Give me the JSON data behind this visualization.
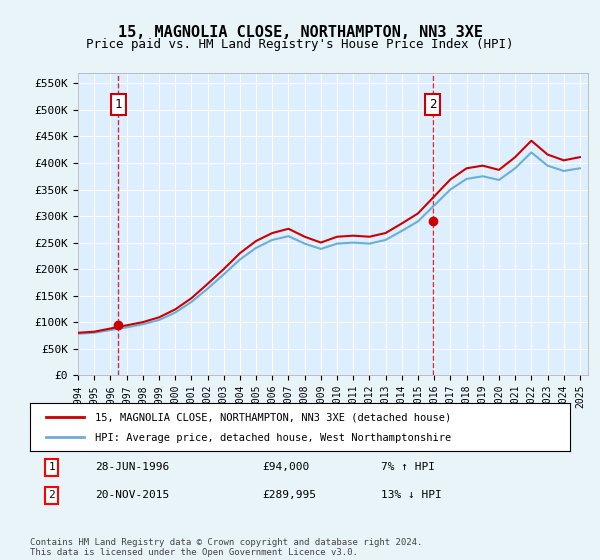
{
  "title": "15, MAGNOLIA CLOSE, NORTHAMPTON, NN3 3XE",
  "subtitle": "Price paid vs. HM Land Registry's House Price Index (HPI)",
  "ylabel_ticks": [
    "£0",
    "£50K",
    "£100K",
    "£150K",
    "£200K",
    "£250K",
    "£300K",
    "£350K",
    "£400K",
    "£450K",
    "£500K",
    "£550K"
  ],
  "ytick_values": [
    0,
    50000,
    100000,
    150000,
    200000,
    250000,
    300000,
    350000,
    400000,
    450000,
    500000,
    550000
  ],
  "ylim": [
    0,
    570000
  ],
  "xlim_start": 1994.0,
  "xlim_end": 2025.5,
  "background_color": "#e8f4f8",
  "plot_bg_color": "#ddeeff",
  "grid_color": "#ffffff",
  "sale1_date": 1996.49,
  "sale1_price": 94000,
  "sale1_label": "1",
  "sale2_date": 2015.9,
  "sale2_price": 289995,
  "sale2_label": "2",
  "legend_line1": "15, MAGNOLIA CLOSE, NORTHAMPTON, NN3 3XE (detached house)",
  "legend_line2": "HPI: Average price, detached house, West Northamptonshire",
  "annotation1": "28-JUN-1996        £94,000        7% ↑ HPI",
  "annotation2": "20-NOV-2015        £289,995        13% ↓ HPI",
  "footer": "Contains HM Land Registry data © Crown copyright and database right 2024.\nThis data is licensed under the Open Government Licence v3.0.",
  "hpi_color": "#6baed6",
  "price_color": "#cc0000",
  "dashed_line_color": "#cc0000",
  "sale_marker_color": "#cc0000",
  "xtick_years": [
    1994,
    1995,
    1996,
    1997,
    1998,
    1999,
    2000,
    2001,
    2002,
    2003,
    2004,
    2005,
    2006,
    2007,
    2008,
    2009,
    2010,
    2011,
    2012,
    2013,
    2014,
    2015,
    2016,
    2017,
    2018,
    2019,
    2020,
    2021,
    2022,
    2023,
    2024,
    2025
  ],
  "hpi_years": [
    1994,
    1995,
    1996,
    1997,
    1998,
    1999,
    2000,
    2001,
    2002,
    2003,
    2004,
    2005,
    2006,
    2007,
    2008,
    2009,
    2010,
    2011,
    2012,
    2013,
    2014,
    2015,
    2016,
    2017,
    2018,
    2019,
    2020,
    2021,
    2022,
    2023,
    2024,
    2025
  ],
  "hpi_values": [
    78000,
    80000,
    85000,
    90000,
    96000,
    104000,
    118000,
    138000,
    163000,
    190000,
    218000,
    240000,
    255000,
    262000,
    248000,
    238000,
    248000,
    250000,
    248000,
    255000,
    272000,
    290000,
    320000,
    350000,
    370000,
    375000,
    368000,
    390000,
    420000,
    395000,
    385000,
    390000
  ],
  "price_years": [
    1994,
    1995,
    1996,
    1997,
    1998,
    1999,
    2000,
    2001,
    2002,
    2003,
    2004,
    2005,
    2006,
    2007,
    2008,
    2009,
    2010,
    2011,
    2012,
    2013,
    2014,
    2015,
    2016,
    2017,
    2018,
    2019,
    2020,
    2021,
    2022,
    2023,
    2024,
    2025
  ],
  "price_values": [
    80000,
    82000,
    88000,
    94000,
    100000,
    109000,
    124000,
    145000,
    172000,
    200000,
    230000,
    253000,
    268000,
    276000,
    261000,
    250000,
    261000,
    263000,
    261000,
    268000,
    286000,
    305000,
    337000,
    369000,
    390000,
    395000,
    387000,
    411000,
    442000,
    416000,
    405000,
    411000
  ]
}
